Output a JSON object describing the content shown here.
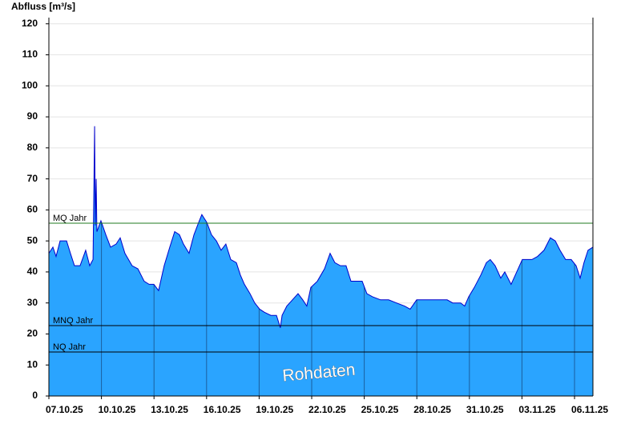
{
  "chart_data": {
    "type": "area",
    "ylabel": "Abfluss [m³/s]",
    "annotation": "Rohdaten",
    "xlim": [
      0,
      31.05
    ],
    "xticks": [
      {
        "value": 0,
        "label": "07.10.25"
      },
      {
        "value": 3,
        "label": "10.10.25"
      },
      {
        "value": 6,
        "label": "13.10.25"
      },
      {
        "value": 9,
        "label": "16.10.25"
      },
      {
        "value": 12,
        "label": "19.10.25"
      },
      {
        "value": 15,
        "label": "22.10.25"
      },
      {
        "value": 18,
        "label": "25.10.25"
      },
      {
        "value": 21,
        "label": "28.10.25"
      },
      {
        "value": 24,
        "label": "31.10.25"
      },
      {
        "value": 27,
        "label": "03.11.25"
      },
      {
        "value": 30,
        "label": "06.11.25"
      }
    ],
    "ylim": [
      0,
      122
    ],
    "yticks": [
      0,
      10,
      20,
      30,
      40,
      50,
      60,
      70,
      80,
      90,
      100,
      110,
      120
    ],
    "grid": true,
    "series": [
      {
        "name": "Abfluss",
        "color": "#2aa4ff",
        "line_color": "#0000cc",
        "x": [
          0,
          0.23,
          0.41,
          0.64,
          1.01,
          1.23,
          1.46,
          1.78,
          2.1,
          2.33,
          2.52,
          2.61,
          2.65,
          2.7,
          2.74,
          2.97,
          3.25,
          3.52,
          3.84,
          4.07,
          4.34,
          4.75,
          5.08,
          5.44,
          5.72,
          5.99,
          6.26,
          6.58,
          6.9,
          7.18,
          7.45,
          7.68,
          8.0,
          8.28,
          8.55,
          8.73,
          9.01,
          9.28,
          9.56,
          9.83,
          10.1,
          10.38,
          10.7,
          10.93,
          11.16,
          11.48,
          11.75,
          12.03,
          12.3,
          12.67,
          12.99,
          13.21,
          13.31,
          13.58,
          13.9,
          14.22,
          14.49,
          14.72,
          14.95,
          15.32,
          15.73,
          16.05,
          16.32,
          16.64,
          16.96,
          17.24,
          17.56,
          17.88,
          18.15,
          18.47,
          18.93,
          19.39,
          19.84,
          20.3,
          20.62,
          20.99,
          21.45,
          21.9,
          22.36,
          22.73,
          23.05,
          23.5,
          23.73,
          23.96,
          24.28,
          24.65,
          24.97,
          25.19,
          25.47,
          25.79,
          26.02,
          26.38,
          26.7,
          27.02,
          27.3,
          27.57,
          27.89,
          28.26,
          28.62,
          28.9,
          29.17,
          29.49,
          29.81,
          30.09,
          30.32,
          30.54,
          30.77,
          31.05
        ],
        "values": [
          46,
          48,
          45,
          50,
          50,
          46,
          42,
          42,
          47,
          42,
          44,
          87,
          55,
          70,
          53,
          56.5,
          52,
          48,
          49,
          51,
          46,
          42,
          41,
          37,
          36,
          36,
          34,
          42,
          48,
          53,
          52,
          49,
          46,
          52,
          56,
          58.5,
          56,
          52,
          50,
          47,
          49,
          44,
          43,
          39,
          36,
          33,
          30,
          28,
          27,
          26,
          26,
          22,
          26,
          29,
          31,
          33,
          31,
          29,
          35,
          37,
          41,
          46,
          43,
          42,
          42,
          37,
          37,
          37,
          33,
          32,
          31,
          31,
          30,
          29,
          28,
          31,
          31,
          31,
          31,
          31,
          30,
          30,
          29,
          32,
          35,
          39,
          43,
          44,
          42,
          38,
          40,
          36,
          40,
          44,
          44,
          44,
          45,
          47,
          51,
          50,
          47,
          44,
          44,
          42,
          38,
          43,
          47,
          48
        ]
      }
    ],
    "reference_lines": [
      {
        "label": "MQ Jahr",
        "value": 55.7,
        "color": "#1f7a1f"
      },
      {
        "label": "MNQ Jahr",
        "value": 22.7,
        "color": "#000000"
      },
      {
        "label": "NQ Jahr",
        "value": 14.2,
        "color": "#000000"
      }
    ]
  }
}
